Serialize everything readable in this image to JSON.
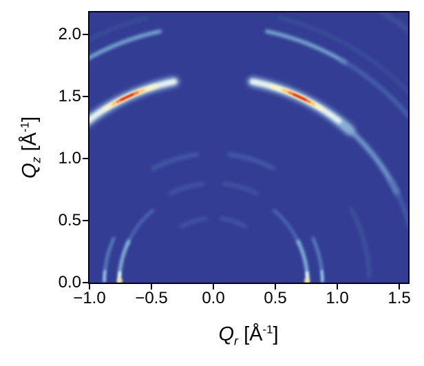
{
  "figure": {
    "background": "#ffffff",
    "plot_background": "#323d93",
    "spine_color": "#000000"
  },
  "axes": {
    "x": {
      "symbol": "Q",
      "subscript": "r",
      "unit_open": " [Å",
      "unit_sup": "-1",
      "unit_close": "]",
      "tick_labels": [
        "−1.0",
        "−0.5",
        "0.0",
        "0.5",
        "1.0",
        "1.5"
      ],
      "tick_values": [
        -1.0,
        -0.5,
        0.0,
        0.5,
        1.0,
        1.5
      ]
    },
    "y": {
      "symbol": "Q",
      "subscript": "z",
      "unit_open": " [Å",
      "unit_sup": "-1",
      "unit_close": "]",
      "tick_labels": [
        "0.0",
        "0.5",
        "1.0",
        "1.5",
        "2.0"
      ],
      "tick_values": [
        0.0,
        0.5,
        1.0,
        1.5,
        2.0
      ]
    }
  },
  "chart_data": {
    "type": "heatmap",
    "title": "",
    "description": "Simulated 2D X-ray scattering (GIWAXS-type) intensity map: Debye-Scherrer arcs centered at the origin on a dark blue background, RdYlBu_r-style colormap with red intensity maxima",
    "xlabel": "Qr [Å⁻¹]",
    "ylabel": "Qz [Å⁻¹]",
    "xlim": [
      -1.0,
      1.572
    ],
    "ylim": [
      0,
      2.178
    ],
    "x_ticks": [
      -1.0,
      -0.5,
      0.0,
      0.5,
      1.0,
      1.5
    ],
    "y_ticks": [
      0.0,
      0.5,
      1.0,
      1.5,
      2.0
    ],
    "grid": false,
    "legend": null,
    "colormap": "RdYlBu_r",
    "colormap_stops": [
      "#313695",
      "#4575b4",
      "#74add1",
      "#abd9e9",
      "#e0f3f8",
      "#ffffbf",
      "#fee090",
      "#fdae61",
      "#f46d43",
      "#d73027"
    ],
    "background_color": "#323d93",
    "ring_center": {
      "Qr": 0.0,
      "Qz": 0.0
    },
    "intensity_maxima": [
      {
        "Qr": -0.72,
        "Qz": 1.49,
        "note": "red hotspot on q=1.65 ring, left"
      },
      {
        "Qr": 0.72,
        "Qz": 1.49,
        "note": "red hotspot on q=1.65 ring, right"
      },
      {
        "Qr": -0.755,
        "Qz": 0.0,
        "note": "bright yellow-white spot where q=0.76 ring meets Qz=0"
      },
      {
        "Qr": 0.755,
        "Qz": 0.0,
        "note": "bright yellow-white spot where q=0.76 ring meets Qz=0"
      }
    ],
    "rings": [
      {
        "q": 0.52,
        "chi1": 7,
        "chi2": 30,
        "color": "#4a5da9",
        "width": 5,
        "blur": 3,
        "opacity": 0.9
      },
      {
        "q": 0.8,
        "chi1": 6,
        "chi2": 26,
        "color": "#4a5da9",
        "width": 5,
        "blur": 3,
        "opacity": 0.9
      },
      {
        "q": 1.04,
        "chi1": 7,
        "chi2": 28,
        "color": "#4e64ae",
        "width": 5,
        "blur": 3,
        "opacity": 0.95
      },
      {
        "q": 1.26,
        "chi1": 62,
        "chi2": 88,
        "color": "#475ca6",
        "width": 4.5,
        "blur": 3,
        "opacity": 0.9
      },
      {
        "q": 0.76,
        "chi1": 40,
        "chi2": 66,
        "color": "#5a76c0",
        "width": 4,
        "blur": 2.5,
        "opacity": 0.85
      },
      {
        "q": 0.76,
        "chi1": 64,
        "chi2": 89.3,
        "color": "#93c4e4",
        "width": 4.5,
        "blur": 2,
        "opacity": 1
      },
      {
        "q": 0.76,
        "chi1": 84,
        "chi2": 89.5,
        "color": "#eef6f0",
        "width": 4,
        "blur": 1.5,
        "opacity": 1
      },
      {
        "q": 0.88,
        "chi1": 66,
        "chi2": 89.2,
        "color": "#6287cb",
        "width": 4,
        "blur": 2,
        "opacity": 1
      },
      {
        "q": 0.88,
        "chi1": 84,
        "chi2": 89.3,
        "color": "#9fc6e6",
        "width": 3.5,
        "blur": 1.5,
        "opacity": 1
      },
      {
        "q": 1.65,
        "chi1": 11,
        "chi2": 42,
        "color": "#a9cee8",
        "width": 13,
        "blur": 4,
        "opacity": 0.95
      },
      {
        "q": 1.65,
        "chi1": 36,
        "chi2": 64,
        "color": "#7fa8d6",
        "width": 6.5,
        "blur": 3,
        "opacity": 0.95
      },
      {
        "q": 1.65,
        "chi1": 60,
        "chi2": 77,
        "color": "#5068b1",
        "width": 5,
        "blur": 3,
        "opacity": 0.85
      },
      {
        "q": 1.65,
        "chi1": 11,
        "chi2": 38,
        "color": "#edf5f3",
        "width": 7,
        "blur": 2,
        "opacity": 1
      },
      {
        "q": 1.65,
        "chi1": 16.5,
        "chi2": 32,
        "color": "#fdf3c0",
        "width": 5.2,
        "blur": 1.5,
        "opacity": 1
      },
      {
        "q": 1.65,
        "chi1": 20,
        "chi2": 29.5,
        "color": "#fbc169",
        "width": 4.2,
        "blur": 1.5,
        "opacity": 1
      },
      {
        "q": 1.65,
        "chi1": 21.8,
        "chi2": 28,
        "color": "#f0763f",
        "width": 3.4,
        "blur": 1,
        "opacity": 1
      },
      {
        "q": 1.65,
        "chi1": 23.2,
        "chi2": 26.8,
        "color": "#d0382a",
        "width": 2.8,
        "blur": 1,
        "opacity": 1
      },
      {
        "q": 2.07,
        "chi1": 12,
        "chi2": 31,
        "color": "#7eb1d8",
        "width": 5,
        "blur": 2.5,
        "opacity": 1
      },
      {
        "q": 2.07,
        "chi1": 30,
        "chi2": 50,
        "color": "#5671b8",
        "width": 4.5,
        "blur": 3,
        "opacity": 0.9
      },
      {
        "q": 2.2,
        "chi1": 14,
        "chi2": 48,
        "color": "#41549f",
        "width": 4,
        "blur": 3,
        "opacity": 0.9
      },
      {
        "q": 2.57,
        "chi1": 25,
        "chi2": 43,
        "color": "#475aa2",
        "width": 5,
        "blur": 3.5,
        "opacity": 0.95
      }
    ],
    "blobs": [
      {
        "Qr": -0.755,
        "Qz": 0.015,
        "rx": 4,
        "ry": 3,
        "color": "#f6e27e",
        "blur": 1.5,
        "opacity": 0.95
      },
      {
        "Qr": 0.755,
        "Qz": 0.015,
        "rx": 4,
        "ry": 3,
        "color": "#f6e27e",
        "blur": 1.5,
        "opacity": 0.95
      }
    ]
  }
}
